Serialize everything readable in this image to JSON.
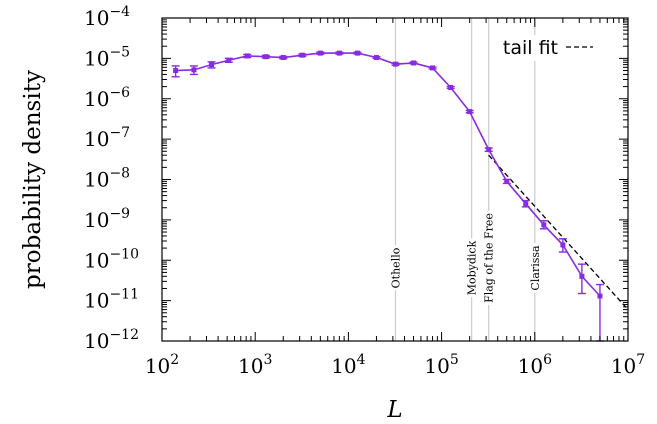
{
  "chart_data": {
    "type": "line",
    "xscale": "log",
    "yscale": "log",
    "xlim": [
      100,
      10000000
    ],
    "ylim": [
      1e-12,
      0.0001
    ],
    "xlabel": "L",
    "ylabel": "probability density",
    "x_ticks": [
      {
        "base": "10",
        "exp": "2",
        "value": 100
      },
      {
        "base": "10",
        "exp": "3",
        "value": 1000
      },
      {
        "base": "10",
        "exp": "4",
        "value": 10000
      },
      {
        "base": "10",
        "exp": "5",
        "value": 100000
      },
      {
        "base": "10",
        "exp": "6",
        "value": 1000000
      },
      {
        "base": "10",
        "exp": "7",
        "value": 10000000
      }
    ],
    "y_ticks": [
      {
        "base": "10",
        "exp": "−4",
        "value": 0.0001
      },
      {
        "base": "10",
        "exp": "−5",
        "value": 1e-05
      },
      {
        "base": "10",
        "exp": "−6",
        "value": 1e-06
      },
      {
        "base": "10",
        "exp": "−7",
        "value": 1e-07
      },
      {
        "base": "10",
        "exp": "−8",
        "value": 1e-08
      },
      {
        "base": "10",
        "exp": "−9",
        "value": 1e-09
      },
      {
        "base": "10",
        "exp": "−10",
        "value": 1e-10
      },
      {
        "base": "10",
        "exp": "−11",
        "value": 1e-11
      },
      {
        "base": "10",
        "exp": "−12",
        "value": 1e-12
      }
    ],
    "series": [
      {
        "color": "#8a2be2",
        "points": [
          {
            "x": 140,
            "y": 5e-06,
            "lo": 3.5e-06,
            "hi": 6.5e-06
          },
          {
            "x": 220,
            "y": 5.2e-06,
            "lo": 4e-06,
            "hi": 6.5e-06
          },
          {
            "x": 340,
            "y": 7e-06,
            "lo": 5.8e-06,
            "hi": 8.2e-06
          },
          {
            "x": 520,
            "y": 9e-06,
            "lo": 8e-06,
            "hi": 1e-05
          },
          {
            "x": 820,
            "y": 1.15e-05,
            "lo": 1.05e-05,
            "hi": 1.25e-05
          },
          {
            "x": 1300,
            "y": 1.1e-05,
            "lo": 1.02e-05,
            "hi": 1.18e-05
          },
          {
            "x": 2000,
            "y": 1.05e-05,
            "lo": 9.8e-06,
            "hi": 1.12e-05
          },
          {
            "x": 3200,
            "y": 1.2e-05,
            "lo": 1.12e-05,
            "hi": 1.28e-05
          },
          {
            "x": 5000,
            "y": 1.35e-05,
            "lo": 1.27e-05,
            "hi": 1.43e-05
          },
          {
            "x": 8000,
            "y": 1.35e-05,
            "lo": 1.28e-05,
            "hi": 1.42e-05
          },
          {
            "x": 12500,
            "y": 1.35e-05,
            "lo": 1.28e-05,
            "hi": 1.42e-05
          },
          {
            "x": 20000,
            "y": 1.05e-05,
            "lo": 1e-05,
            "hi": 1.1e-05
          },
          {
            "x": 32000,
            "y": 7.2e-06,
            "lo": 6.8e-06,
            "hi": 7.6e-06
          },
          {
            "x": 50000,
            "y": 7.7e-06,
            "lo": 7.3e-06,
            "hi": 8.1e-06
          },
          {
            "x": 80000,
            "y": 5.8e-06,
            "lo": 5.5e-06,
            "hi": 6.1e-06
          },
          {
            "x": 125000,
            "y": 1.9e-06,
            "lo": 1.8e-06,
            "hi": 2e-06
          },
          {
            "x": 200000,
            "y": 4.8e-07,
            "lo": 4.5e-07,
            "hi": 5.1e-07
          },
          {
            "x": 320000,
            "y": 5.5e-08,
            "lo": 5e-08,
            "hi": 6e-08
          },
          {
            "x": 500000,
            "y": 9e-09,
            "lo": 8e-09,
            "hi": 1e-08
          },
          {
            "x": 800000,
            "y": 2.5e-09,
            "lo": 2.1e-09,
            "hi": 3e-09
          },
          {
            "x": 1250000,
            "y": 7.5e-10,
            "lo": 6e-10,
            "hi": 9.5e-10
          },
          {
            "x": 2000000,
            "y": 2.4e-10,
            "lo": 1.6e-10,
            "hi": 3.4e-10
          },
          {
            "x": 3200000,
            "y": 4e-11,
            "lo": 1.5e-11,
            "hi": 8e-11
          },
          {
            "x": 5000000,
            "y": 1.3e-11,
            "lo": 1e-12,
            "hi": 2.5e-11
          }
        ]
      },
      {
        "name": "tail fit",
        "style": "dashed",
        "color": "#000000",
        "points": [
          {
            "x": 320000,
            "y": 4e-08
          },
          {
            "x": 10000000,
            "y": 6e-12
          }
        ]
      }
    ],
    "legend": {
      "position": "top-right",
      "entries": [
        "tail fit"
      ]
    },
    "annotations": [
      {
        "x": 320000,
        "label": "Flag of the Free",
        "color": "#cccccc"
      },
      {
        "x": 32000,
        "label": "Othello",
        "color": "#cccccc"
      },
      {
        "x": 210000,
        "label": "Mobydick",
        "color": "#cccccc"
      },
      {
        "x": 1000000,
        "label": "Clarissa",
        "color": "#cccccc"
      }
    ]
  }
}
